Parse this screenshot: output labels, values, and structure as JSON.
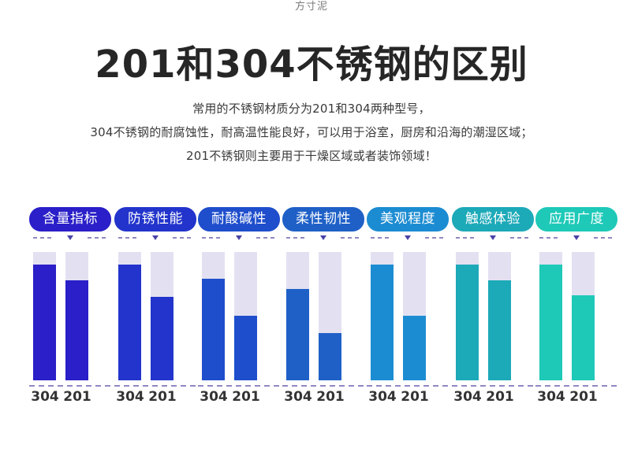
{
  "brand": "方寸泥",
  "title": "201和304不锈钢的区别",
  "intro": [
    "常用的不锈钢材质分为201和304两种型号，",
    "304不锈钢的耐腐蚀性，耐高温性能良好，可以用于浴室，厨房和沿海的潮湿区域；",
    "201不锈钢则主要用于干燥区域或者装饰领域！"
  ],
  "chart_data": {
    "type": "bar",
    "series_names": [
      "304",
      "201"
    ],
    "categories": [
      {
        "name": "含量指标",
        "color": "#2a1fc8",
        "values": [
          0.9,
          0.78
        ]
      },
      {
        "name": "防锈性能",
        "color": "#2234cb",
        "values": [
          0.9,
          0.65
        ]
      },
      {
        "name": "耐酸碱性",
        "color": "#1f4ecc",
        "values": [
          0.79,
          0.5
        ]
      },
      {
        "name": "柔性韧性",
        "color": "#1f60c7",
        "values": [
          0.71,
          0.37
        ]
      },
      {
        "name": "美观程度",
        "color": "#1c8cd2",
        "values": [
          0.9,
          0.5
        ]
      },
      {
        "name": "触感体验",
        "color": "#1ca9b8",
        "values": [
          0.9,
          0.78
        ]
      },
      {
        "name": "应用广度",
        "color": "#1ec9b8",
        "values": [
          0.9,
          0.66
        ]
      }
    ],
    "background_color": "#e3e1f1",
    "ylim": [
      0,
      1
    ]
  }
}
